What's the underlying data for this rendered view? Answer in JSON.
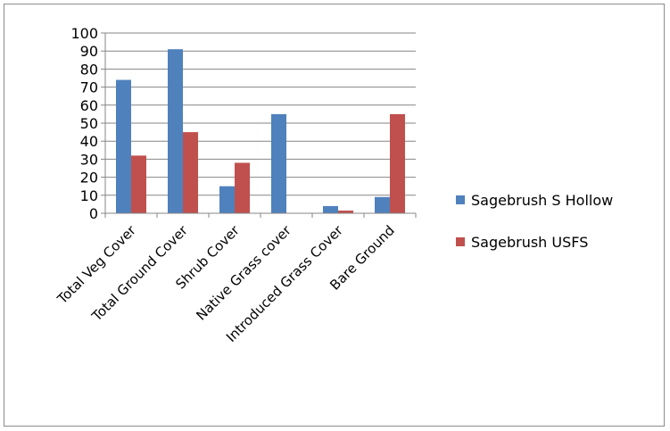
{
  "chart_data": {
    "type": "bar",
    "categories": [
      "Total Veg Cover",
      "Total Ground Cover",
      "Shrub Cover",
      "Native Grass cover",
      "Introduced Grass Cover",
      "Bare Ground"
    ],
    "series": [
      {
        "name": "Sagebrush S Hollow",
        "values": [
          74,
          91,
          15,
          55,
          4,
          9
        ],
        "color": "#4f81bd"
      },
      {
        "name": "Sagebrush USFS",
        "values": [
          32,
          45,
          28,
          0,
          1.5,
          55
        ],
        "color": "#c0504d"
      }
    ],
    "ylim": [
      0,
      100
    ],
    "yticks": [
      "0",
      "10",
      "20",
      "30",
      "40",
      "50",
      "60",
      "70",
      "80",
      "90",
      "100"
    ],
    "grid": true,
    "legend_position": "right"
  }
}
